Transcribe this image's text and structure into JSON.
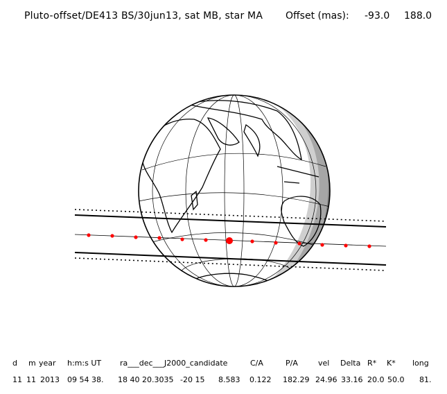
{
  "header": {
    "title": "Pluto-offset/DE413 BS/30jun13, sat MB, star MA",
    "offset_label": "Offset (mas):",
    "offset_x": "-93.0",
    "offset_y": "188.0"
  },
  "table": {
    "headers": [
      "d",
      "m",
      "year",
      "h:m:s UT",
      "ra___dec___J2000_candidate",
      "C/A",
      "P/A",
      "vel",
      "Delta",
      "R*",
      "K*",
      "long"
    ],
    "values": [
      "11",
      "11",
      "2013",
      "09 54 38.",
      "18 40 20.3035",
      "-20 15",
      "8.583",
      "0.122",
      "182.29",
      "24.96",
      "33.16",
      "20.0",
      "50.0",
      "81."
    ]
  },
  "colors": {
    "night_dark": "#7a7a7a",
    "night_mid": "#a6a6a6",
    "night_light": "#cfcfcf",
    "star_marker": "#ff0000"
  }
}
